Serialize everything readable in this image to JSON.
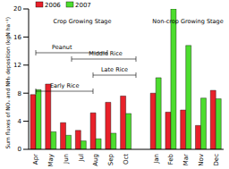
{
  "chart_data": {
    "type": "bar",
    "y_label": "Sum fluxes of NOₓ and NH₃ deposition (kgN ha⁻¹)",
    "categories": [
      "Apr",
      "May",
      "Jun",
      "Jul",
      "Aug",
      "Sep",
      "Oct",
      null,
      "Jan",
      "Feb",
      "Mar",
      "Nov",
      "Dec"
    ],
    "series": [
      {
        "name": "2006",
        "color": "#e8212a",
        "values": [
          7.8,
          9.3,
          3.8,
          2.7,
          5.2,
          6.7,
          7.6,
          null,
          8.0,
          5.3,
          5.6,
          3.4,
          8.4
        ]
      },
      {
        "name": "2007",
        "color": "#4cdd2e",
        "values": [
          8.5,
          2.5,
          2.0,
          1.2,
          1.5,
          2.3,
          5.1,
          null,
          10.2,
          20.0,
          14.8,
          7.3,
          7.2
        ]
      }
    ],
    "ylim": [
      0,
      20
    ],
    "yticks": [
      0,
      4,
      8,
      12,
      16,
      20
    ],
    "legend": "upper left",
    "annotations": [
      "Crop Growing Stage",
      "Non-crop Growing Stage",
      "Peanut",
      "Middle Rice",
      "Late Rice",
      "Early Rice"
    ]
  }
}
